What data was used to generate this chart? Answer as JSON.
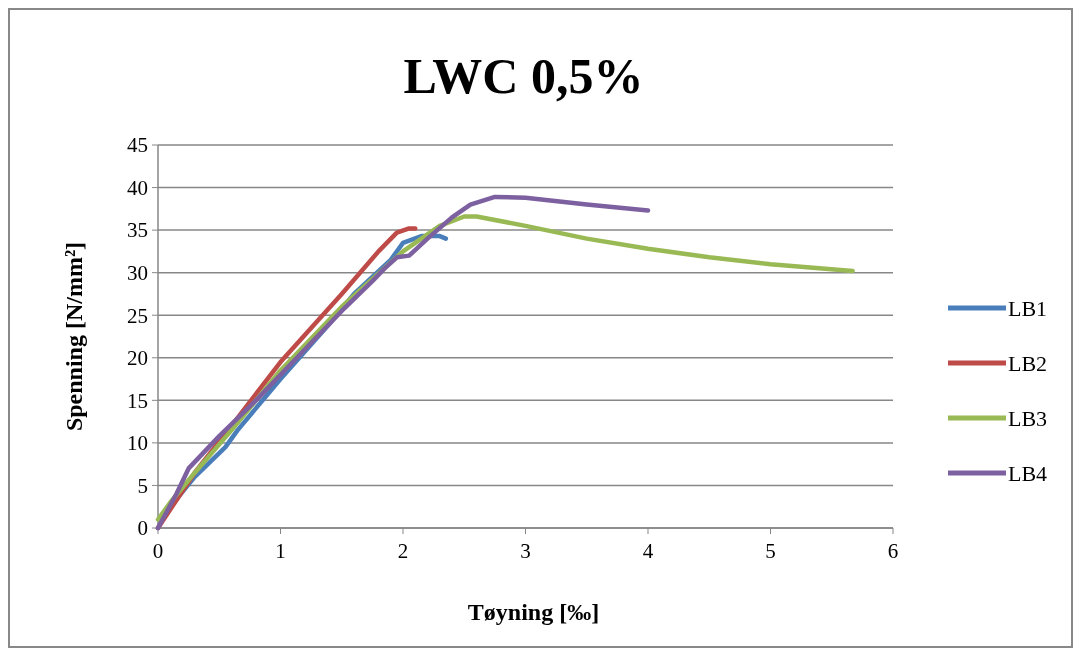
{
  "chart_data": {
    "type": "line",
    "title": "LWC 0,5%",
    "xlabel": "Tøyning [‰]",
    "ylabel": "Spenning [N/mm²]",
    "xlim": [
      0,
      6
    ],
    "xticks": [
      0,
      1,
      2,
      3,
      4,
      5,
      6
    ],
    "ylim": [
      0,
      45
    ],
    "yticks": [
      0,
      5,
      10,
      15,
      20,
      25,
      30,
      35,
      40,
      45
    ],
    "grid": "y",
    "legend": "right",
    "marker": "none",
    "line_style": "solid",
    "series": [
      {
        "name": "LB1",
        "color": "#4a7ebb",
        "x": [
          0,
          0.1,
          0.3,
          0.55,
          0.65,
          1.0,
          1.4,
          1.6,
          1.9,
          2.0,
          2.15,
          2.3,
          2.35
        ],
        "values": [
          0,
          2.5,
          6,
          9.5,
          11.5,
          17.5,
          24,
          27.5,
          31.5,
          33.5,
          34.3,
          34.3,
          34
        ]
      },
      {
        "name": "LB2",
        "color": "#be4b48",
        "x": [
          0,
          0.3,
          0.6,
          1.0,
          1.5,
          1.8,
          1.95,
          2.05,
          2.1
        ],
        "values": [
          0,
          6.5,
          12,
          19.5,
          27.5,
          32.5,
          34.7,
          35.2,
          35.2
        ]
      },
      {
        "name": "LB3",
        "color": "#98b954",
        "x": [
          0,
          0.1,
          0.3,
          0.6,
          1.0,
          1.5,
          2.0,
          2.3,
          2.5,
          2.6,
          3.0,
          3.5,
          4.0,
          4.5,
          5.0,
          5.67
        ],
        "values": [
          1,
          3,
          6.5,
          11.5,
          18.5,
          26,
          32.5,
          35.5,
          36.6,
          36.6,
          35.5,
          34,
          32.8,
          31.8,
          31,
          30.2
        ]
      },
      {
        "name": "LB4",
        "color": "#7d60a0",
        "x": [
          0,
          0.15,
          0.25,
          0.5,
          0.8,
          1.2,
          1.5,
          1.75,
          1.85,
          1.95,
          2.05,
          2.2,
          2.4,
          2.55,
          2.75,
          3.0,
          3.5,
          4.0
        ],
        "values": [
          0,
          4,
          7,
          10.8,
          15,
          21,
          25.5,
          29,
          30.5,
          31.8,
          32,
          34,
          36.5,
          38,
          38.9,
          38.8,
          38,
          37.3
        ]
      }
    ]
  }
}
